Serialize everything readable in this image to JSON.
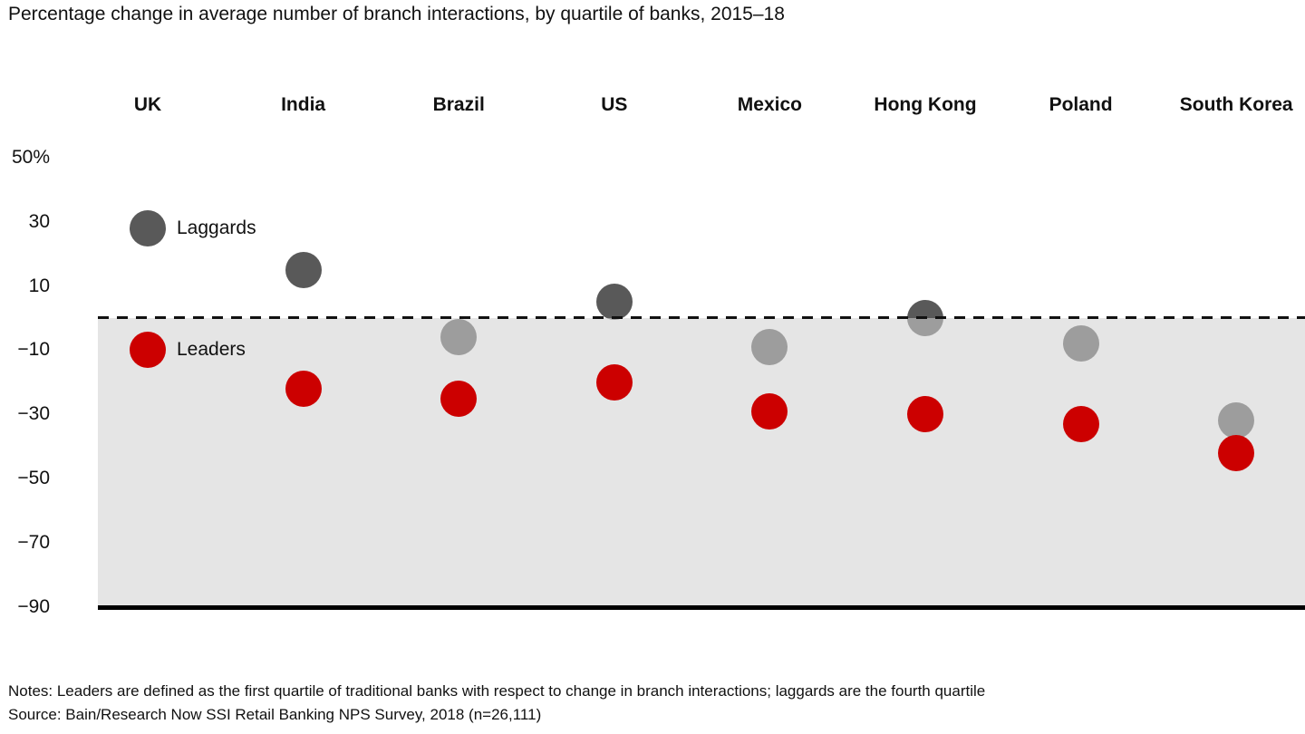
{
  "title": "Percentage change in average number of branch interactions, by quartile of banks, 2015–18",
  "legend": {
    "laggards_label": "Laggards",
    "leaders_label": "Leaders"
  },
  "notes": "Notes: Leaders are defined as the first quartile of traditional banks with respect to change in branch interactions; laggards are the fourth quartile",
  "source": "Source: Bain/Research Now SSI Retail Banking NPS Survey, 2018 (n=26,111)",
  "colors": {
    "laggards_dot": "#595959",
    "leaders_dot": "#cc0000",
    "negative_band": "#e6e6e6",
    "negative_band_overlay": "rgba(210,210,210,0.57)",
    "zero_line": "#111111",
    "baseline": "#000000"
  },
  "chart_data": {
    "type": "scatter",
    "title": "Percentage change in average number of branch interactions, by quartile of banks, 2015–18",
    "categories": [
      "UK",
      "India",
      "Brazil",
      "US",
      "Mexico",
      "Hong Kong",
      "Poland",
      "South Korea"
    ],
    "series": [
      {
        "name": "Laggards",
        "color": "#595959",
        "values": [
          28,
          15,
          -6,
          5,
          -9,
          0,
          -8,
          -32
        ]
      },
      {
        "name": "Leaders",
        "color": "#cc0000",
        "values": [
          -10,
          -22,
          -25,
          -20,
          -29,
          -30,
          -33,
          -42
        ]
      }
    ],
    "y_ticks": [
      {
        "label": "50%",
        "value": 50
      },
      {
        "label": "30",
        "value": 30
      },
      {
        "label": "10",
        "value": 10
      },
      {
        "label": "−10",
        "value": -10
      },
      {
        "label": "−30",
        "value": -30
      },
      {
        "label": "−50",
        "value": -50
      },
      {
        "label": "−70",
        "value": -70
      },
      {
        "label": "−90",
        "value": -90
      }
    ],
    "xlabel": "",
    "ylabel": "",
    "ylim": [
      -90,
      55
    ],
    "grid": false,
    "zero_line_style": "dashed",
    "negative_region_shaded": true,
    "legend_position": "inline-next-to-first-category-dots",
    "annotations": [
      "Laggards",
      "Leaders"
    ]
  }
}
